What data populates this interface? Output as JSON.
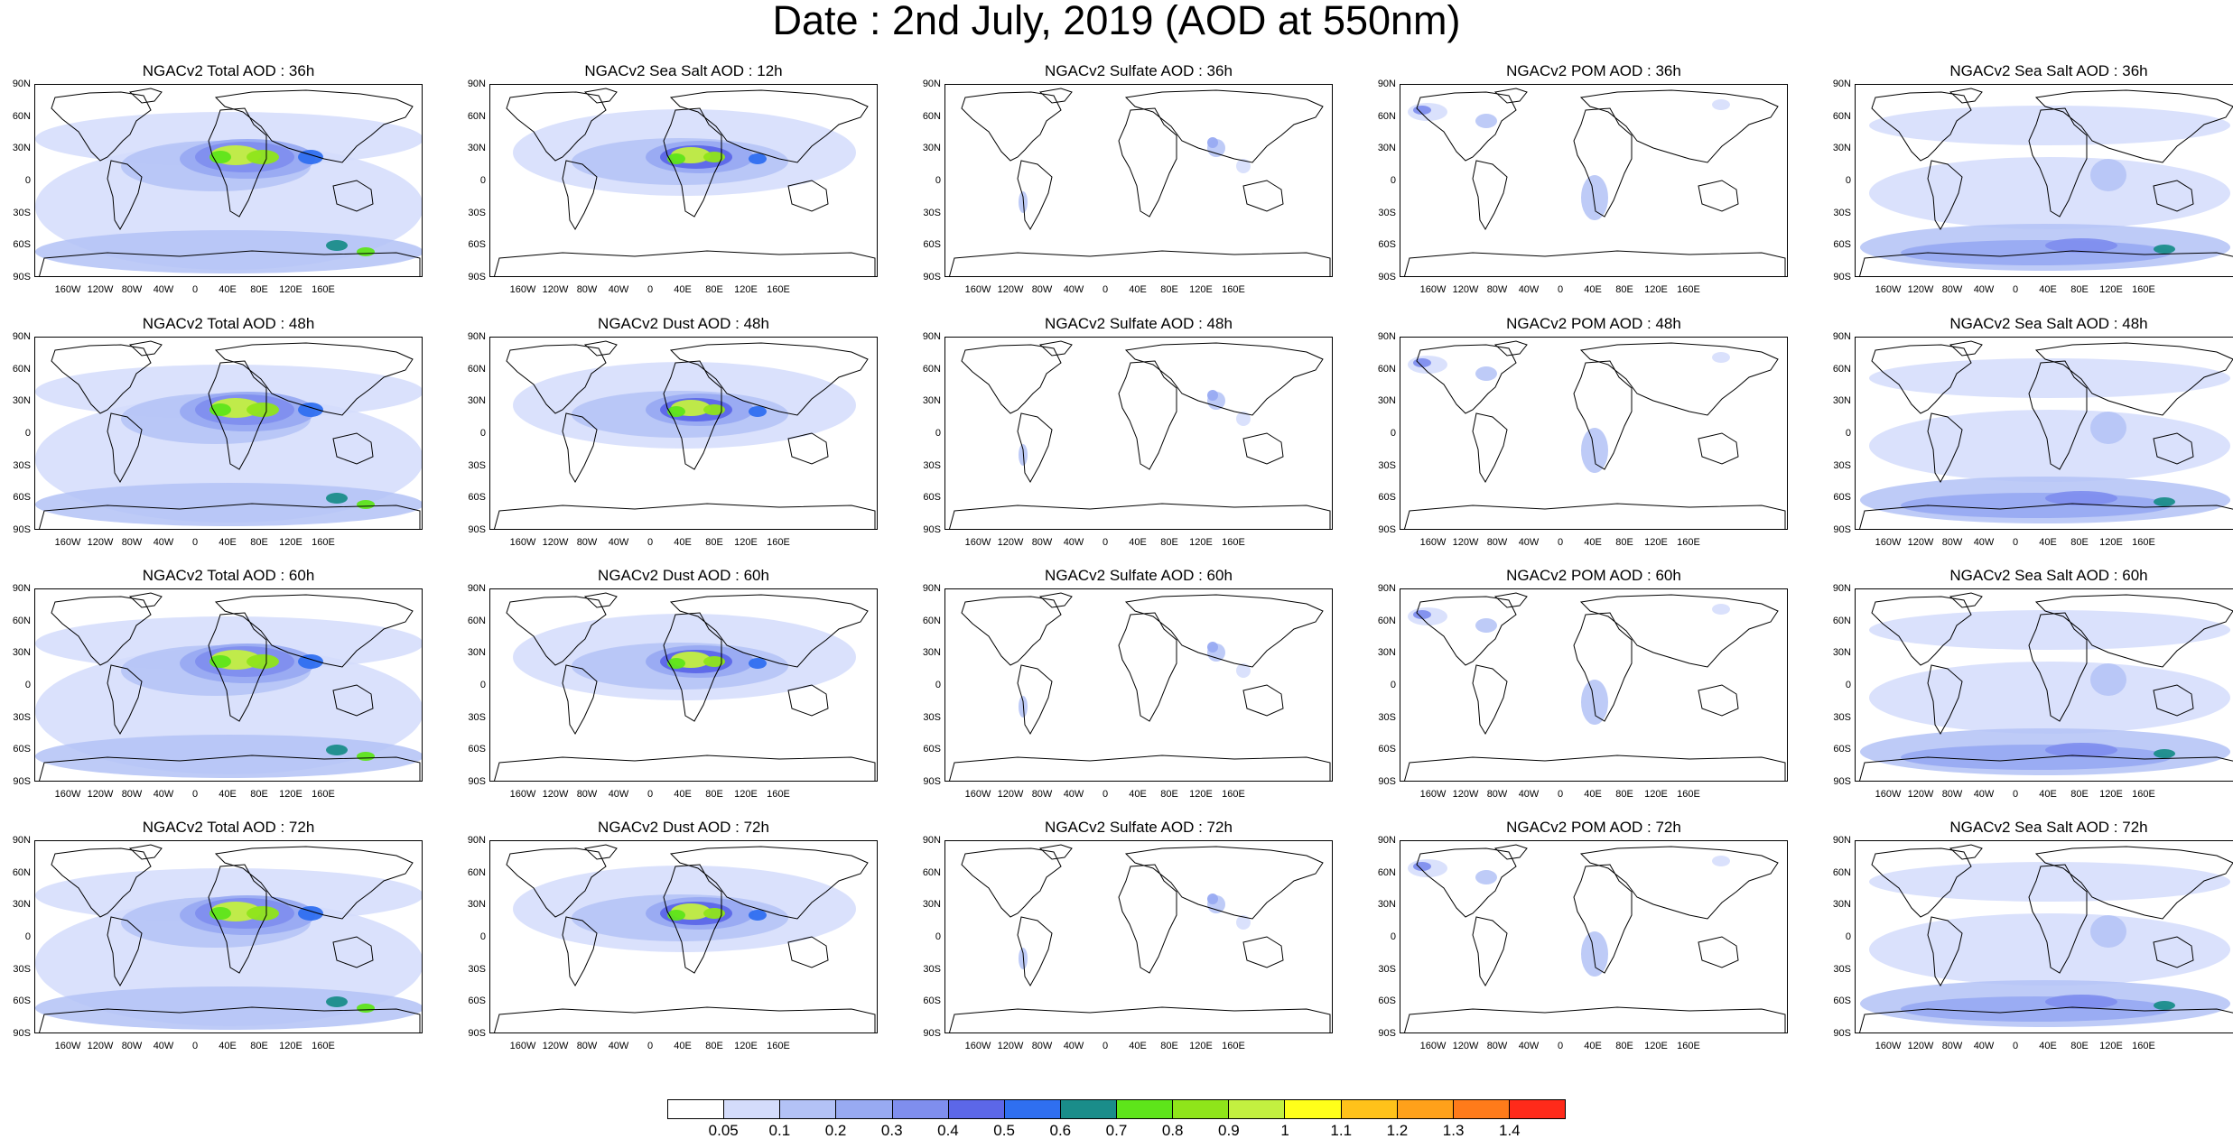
{
  "title": "Date : 2nd July, 2019 (AOD at 550nm)",
  "lat_labels": [
    "90N",
    "60N",
    "30N",
    "0",
    "30S",
    "60S",
    "90S"
  ],
  "lon_labels": [
    "160W",
    "120W",
    "80W",
    "40W",
    "0",
    "40E",
    "80E",
    "120E",
    "160E"
  ],
  "panel_titles": [
    [
      "NGACv2 Total AOD : 36h",
      "NGACv2 Sea Salt  AOD : 12h",
      "NGACv2 Sulfate AOD : 36h",
      "NGACv2 POM AOD : 36h",
      "NGACv2 Sea Salt  AOD : 36h"
    ],
    [
      "NGACv2 Total AOD : 48h",
      "NGACv2 Dust AOD : 48h",
      "NGACv2 Sulfate AOD : 48h",
      "NGACv2 POM AOD : 48h",
      "NGACv2 Sea Salt  AOD : 48h"
    ],
    [
      "NGACv2 Total AOD : 60h",
      "NGACv2 Dust AOD : 60h",
      "NGACv2 Sulfate AOD : 60h",
      "NGACv2 POM AOD : 60h",
      "NGACv2 Sea Salt  AOD : 60h"
    ],
    [
      "NGACv2 Total AOD : 72h",
      "NGACv2 Dust AOD : 72h",
      "NGACv2 Sulfate AOD : 72h",
      "NGACv2 POM AOD : 72h",
      "NGACv2 Sea Salt  AOD : 72h"
    ]
  ],
  "colorbar": {
    "labels": [
      "0.05",
      "0.1",
      "0.2",
      "0.3",
      "0.4",
      "0.5",
      "0.6",
      "0.7",
      "0.8",
      "0.9",
      "1",
      "1.1",
      "1.2",
      "1.3",
      "1.4"
    ],
    "colors": [
      "#ffffff",
      "#d4dcfb",
      "#b3c2f6",
      "#98aaf2",
      "#7f8eee",
      "#5c67e8",
      "#2f6ff0",
      "#1a8d8a",
      "#5ee51a",
      "#8fe51a",
      "#c3f040",
      "#ffff1a",
      "#ffc21a",
      "#ffa11a",
      "#ff7b1a",
      "#ff2a1a"
    ]
  }
}
